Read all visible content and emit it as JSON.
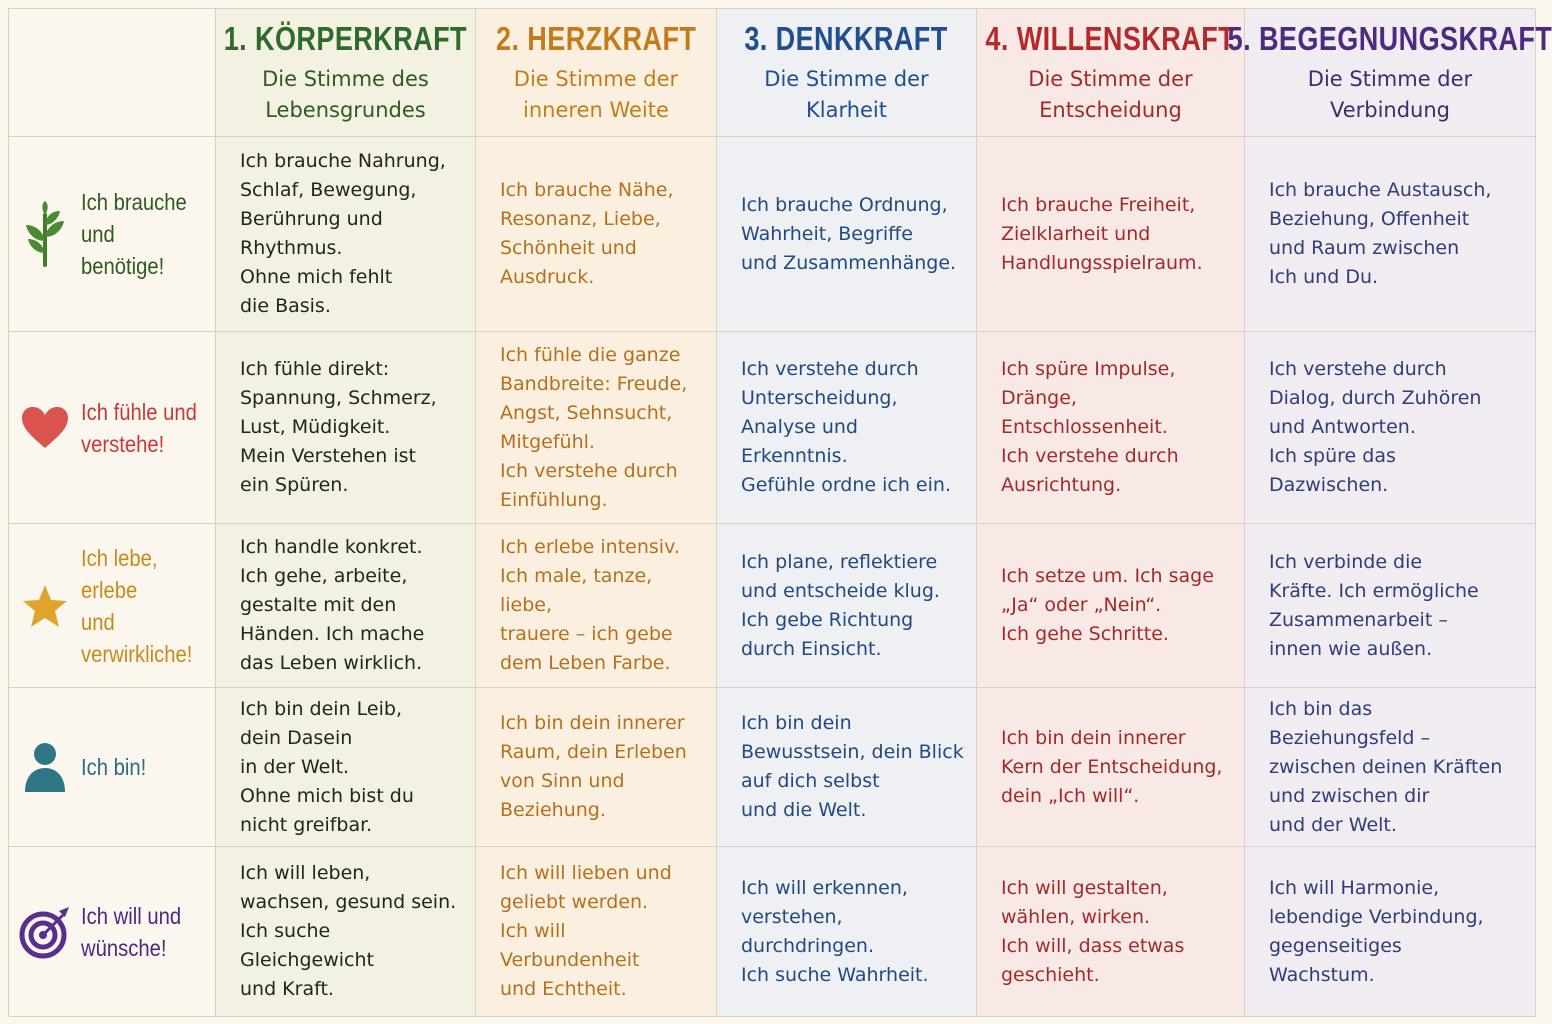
{
  "colors": {
    "koerper": "#2f6b2b",
    "herz": "#c47c1b",
    "denk": "#1f4f8f",
    "willen": "#b42a2a",
    "begegnung": "#4b2a80"
  },
  "columns": [
    {
      "title": "1. KÖRPERKRAFT",
      "subtitle": "Die Stimme des\nLebensgrundes"
    },
    {
      "title": "2. HERZKRAFT",
      "subtitle": "Die Stimme der\ninneren Weite"
    },
    {
      "title": "3. DENKKRAFT",
      "subtitle": "Die Stimme der\nKlarheit"
    },
    {
      "title": "4. WILLENSKRAFT",
      "subtitle": "Die Stimme der\nEntscheidung"
    },
    {
      "title": "5. BEGEGNUNGSKRAFT",
      "subtitle": "Die Stimme der\nVerbindung"
    }
  ],
  "rows": [
    {
      "icon": "plant-icon",
      "label": "Ich brauche\nund benötige!",
      "cells": [
        "Ich brauche Nahrung,\nSchlaf, Bewegung,\nBerührung und\nRhythmus.\nOhne mich fehlt\ndie Basis.",
        "Ich brauche Nähe,\nResonanz, Liebe,\nSchönheit und\nAusdruck.",
        "Ich brauche Ordnung,\nWahrheit, Begriffe\nund Zusammenhänge.",
        "Ich brauche Freiheit,\nZielklarheit und\nHandlungsspielraum.",
        "Ich brauche Austausch,\nBeziehung, Offenheit\nund Raum zwischen\nIch und Du."
      ]
    },
    {
      "icon": "heart-icon",
      "label": "Ich fühle und\nverstehe!",
      "cells": [
        "Ich fühle direkt:\nSpannung, Schmerz,\nLust, Müdigkeit.\nMein Verstehen ist\nein Spüren.",
        "Ich fühle die ganze\nBandbreite: Freude,\nAngst, Sehnsucht,\nMitgefühl.\nIch verstehe durch\nEinfühlung.",
        "Ich verstehe durch\nUnterscheidung,\nAnalyse und Erkenntnis.\nGefühle ordne ich ein.",
        "Ich spüre Impulse,\nDränge, Entschlossenheit.\nIch verstehe durch\nAusrichtung.",
        "Ich verstehe durch\nDialog, durch Zuhören\nund Antworten.\nIch spüre das\nDazwischen."
      ]
    },
    {
      "icon": "star-icon",
      "label": "Ich lebe, erlebe\nund verwirkliche!",
      "cells": [
        "Ich handle konkret.\nIch gehe, arbeite,\ngestalte mit den\nHänden. Ich mache\ndas Leben wirklich.",
        "Ich erlebe intensiv.\nIch male, tanze, liebe,\ntrauere – ich gebe\ndem Leben Farbe.",
        "Ich plane, reflektiere\nund entscheide klug.\nIch gebe Richtung\ndurch Einsicht.",
        "Ich setze um. Ich sage\n„Ja“ oder „Nein“.\nIch gehe Schritte.",
        "Ich verbinde die\nKräfte. Ich ermögliche\nZusammenarbeit –\ninnen wie außen."
      ]
    },
    {
      "icon": "person-icon",
      "label": "Ich bin!",
      "cells": [
        "Ich bin dein Leib,\ndein Dasein\nin der Welt.\nOhne mich bist du\nnicht greifbar.",
        "Ich bin dein innerer\nRaum, dein Erleben\nvon Sinn und\nBeziehung.",
        "Ich bin dein\nBewusstsein, dein Blick\nauf dich selbst\nund die Welt.",
        "Ich bin dein innerer\nKern der Entscheidung,\ndein „Ich will“.",
        "Ich bin das\nBeziehungsfeld –\nzwischen deinen Kräften\nund zwischen dir\nund der Welt."
      ]
    },
    {
      "icon": "target-icon",
      "label": "Ich will und\nwünsche!",
      "cells": [
        "Ich will leben,\nwachsen, gesund sein.\nIch suche Gleichgewicht\nund Kraft.",
        "Ich will lieben und\ngeliebt werden.\nIch will Verbundenheit\nund Echtheit.",
        "Ich will erkennen,\nverstehen, durchdringen.\nIch suche Wahrheit.",
        "Ich will gestalten,\nwählen, wirken.\nIch will, dass etwas\ngeschieht.",
        "Ich will Harmonie,\nlebendige Verbindung,\ngegenseitiges\nWachstum."
      ]
    }
  ],
  "row_label_colors": [
    "#2f5a22",
    "#c8393a",
    "#c88a1c",
    "#2a6e80",
    "#4b2a80"
  ]
}
